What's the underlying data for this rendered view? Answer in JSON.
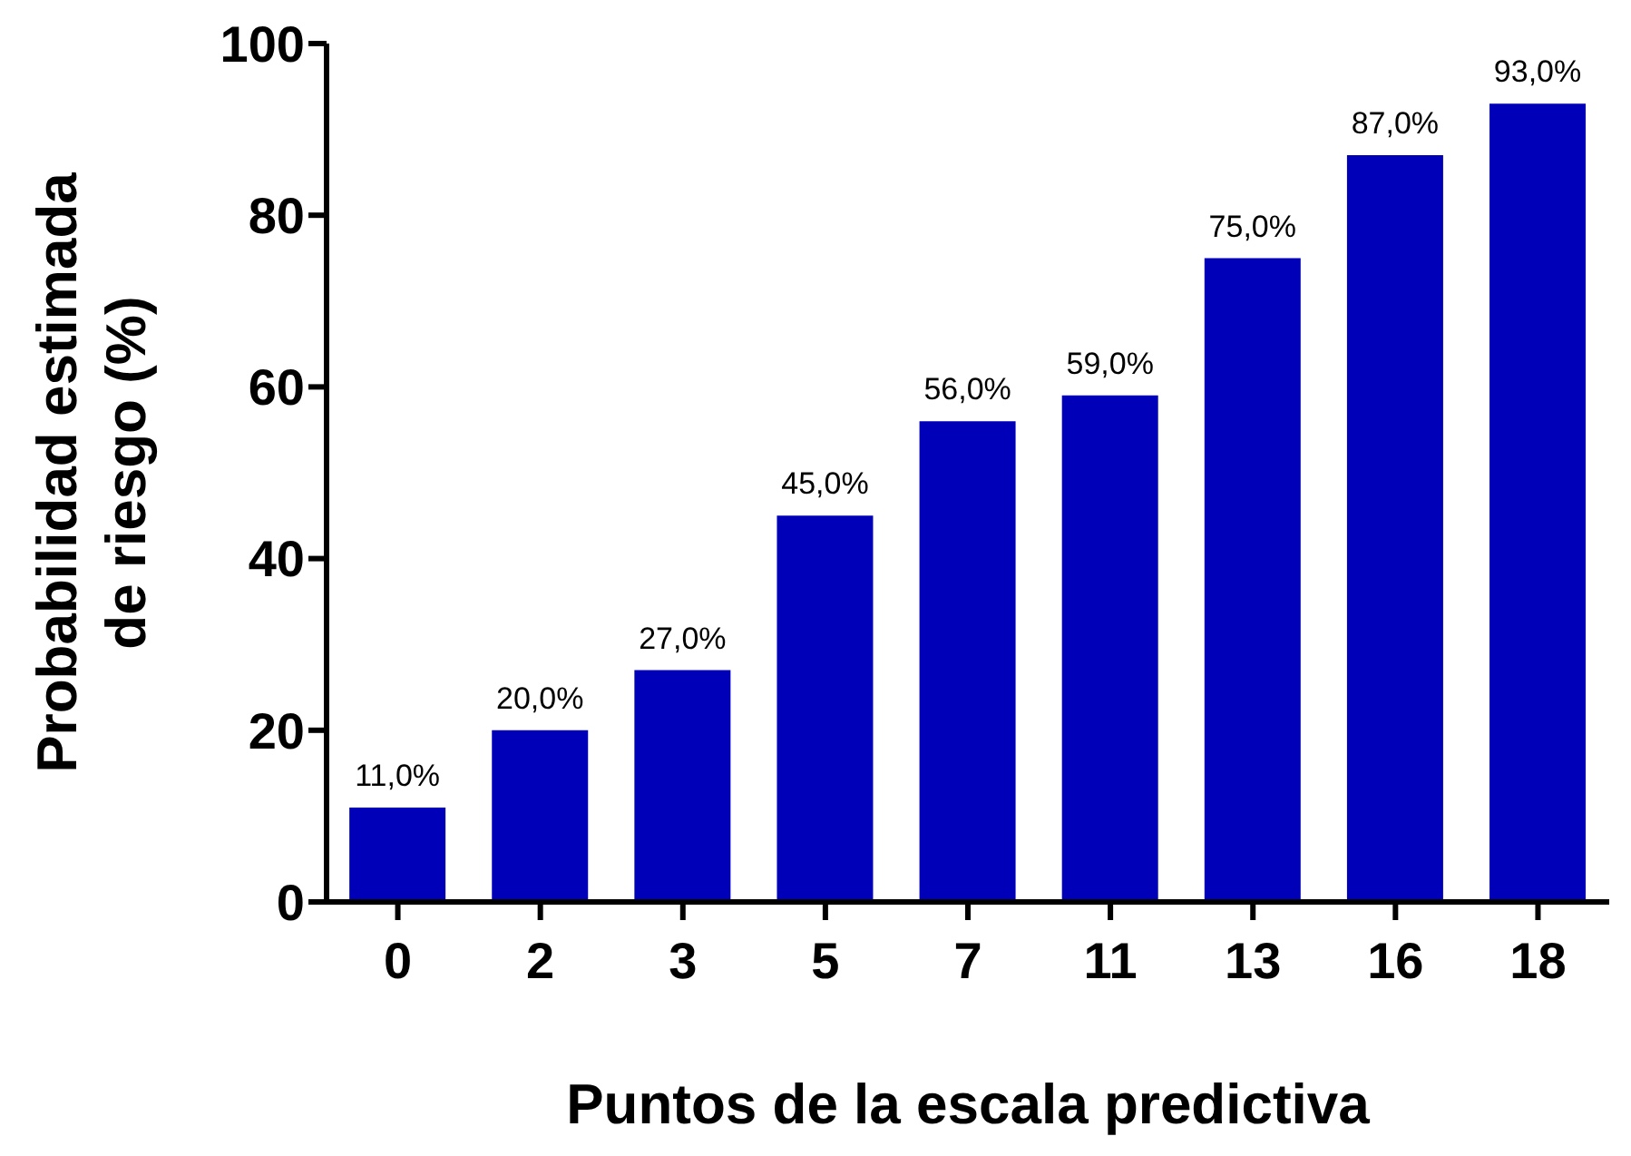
{
  "chart_data": {
    "type": "bar",
    "xlabel": "Puntos de la escala predictiva",
    "ylabel": "Probabilidad estimada\nde riesgo (%)",
    "categories": [
      "0",
      "2",
      "3",
      "5",
      "7",
      "11",
      "13",
      "16",
      "18"
    ],
    "values": [
      11,
      20,
      27,
      45,
      56,
      59,
      75,
      87,
      93
    ],
    "value_labels": [
      "11,0%",
      "20,0%",
      "27,0%",
      "45,0%",
      "56,0%",
      "59,0%",
      "75,0%",
      "87,0%",
      "93,0%"
    ],
    "color": "#0000b8",
    "ylim": [
      0,
      100
    ],
    "yticks": [
      0,
      20,
      40,
      60,
      80,
      100
    ],
    "grid": false
  }
}
